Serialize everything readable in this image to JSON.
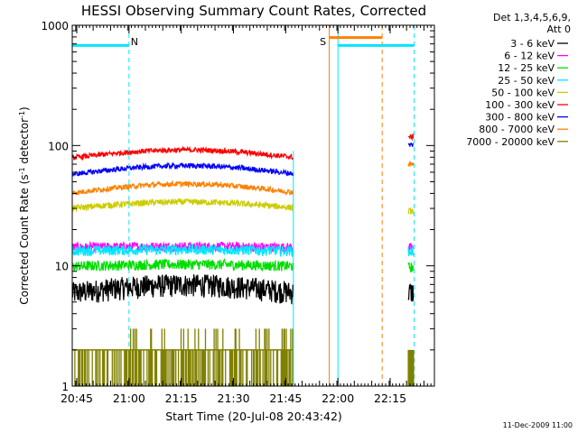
{
  "chart_data": {
    "type": "line",
    "title": "HESSI Observing Summary Count Rates, Corrected",
    "xlabel": "Start Time (20-Jul-08 20:43:42)",
    "ylabel_main": "Corrected Count Rate (s",
    "ylabel_sup1": "-1",
    "ylabel_mid": " detector",
    "ylabel_sup2": "-1",
    "ylabel_end": ")",
    "y_scale": "log",
    "ylim": [
      1,
      1000
    ],
    "xlim_minutes": [
      0,
      104
    ],
    "x_ticks": [
      {
        "label": "20:45",
        "min": 1.3
      },
      {
        "label": "21:00",
        "min": 16.3
      },
      {
        "label": "21:15",
        "min": 31.3
      },
      {
        "label": "21:30",
        "min": 46.3
      },
      {
        "label": "21:45",
        "min": 61.3
      },
      {
        "label": "22:00",
        "min": 76.3
      },
      {
        "label": "22:15",
        "min": 91.3
      }
    ],
    "y_ticks": [
      {
        "label": "1",
        "value": 1
      },
      {
        "label": "10",
        "value": 10
      },
      {
        "label": "100",
        "value": 100
      },
      {
        "label": "1000",
        "value": 1000
      }
    ],
    "legend": {
      "header1": "Det 1,3,4,5,6,9,",
      "header2": "Att 0",
      "placement": "right"
    },
    "series": [
      {
        "name": "3 - 6 keV",
        "color": "#000000",
        "base": 6.2,
        "bump": 0.8
      },
      {
        "name": "6 - 12 keV",
        "color": "#ff00ff",
        "base": 14.3,
        "bump": 0.2
      },
      {
        "name": "12 - 25 keV",
        "color": "#00dd00",
        "base": 10.0,
        "bump": 0.3
      },
      {
        "name": "25 - 50 keV",
        "color": "#00e5ff",
        "base": 13.4,
        "bump": 0.3
      },
      {
        "name": "50 - 100 keV",
        "color": "#cccc00",
        "base": 31.0,
        "bump": 3.0
      },
      {
        "name": "100 - 300 keV",
        "color": "#ff0000",
        "base": 82.0,
        "bump": 10.0
      },
      {
        "name": "300 - 800 keV",
        "color": "#0000ff",
        "base": 60.0,
        "bump": 8.0
      },
      {
        "name": "800 - 7000 keV",
        "color": "#ff8000",
        "base": 42.0,
        "bump": 6.0
      },
      {
        "name": "7000 - 20000 keV",
        "color": "#808000",
        "base": 1.5,
        "bump": 0
      }
    ],
    "annotations": [
      {
        "label": "N",
        "min": 16.3,
        "color": "#00e5ff"
      },
      {
        "label": "S",
        "min": 73.8,
        "color": "#ff8000"
      }
    ],
    "footer": "11-Dec-2009 11:00"
  }
}
